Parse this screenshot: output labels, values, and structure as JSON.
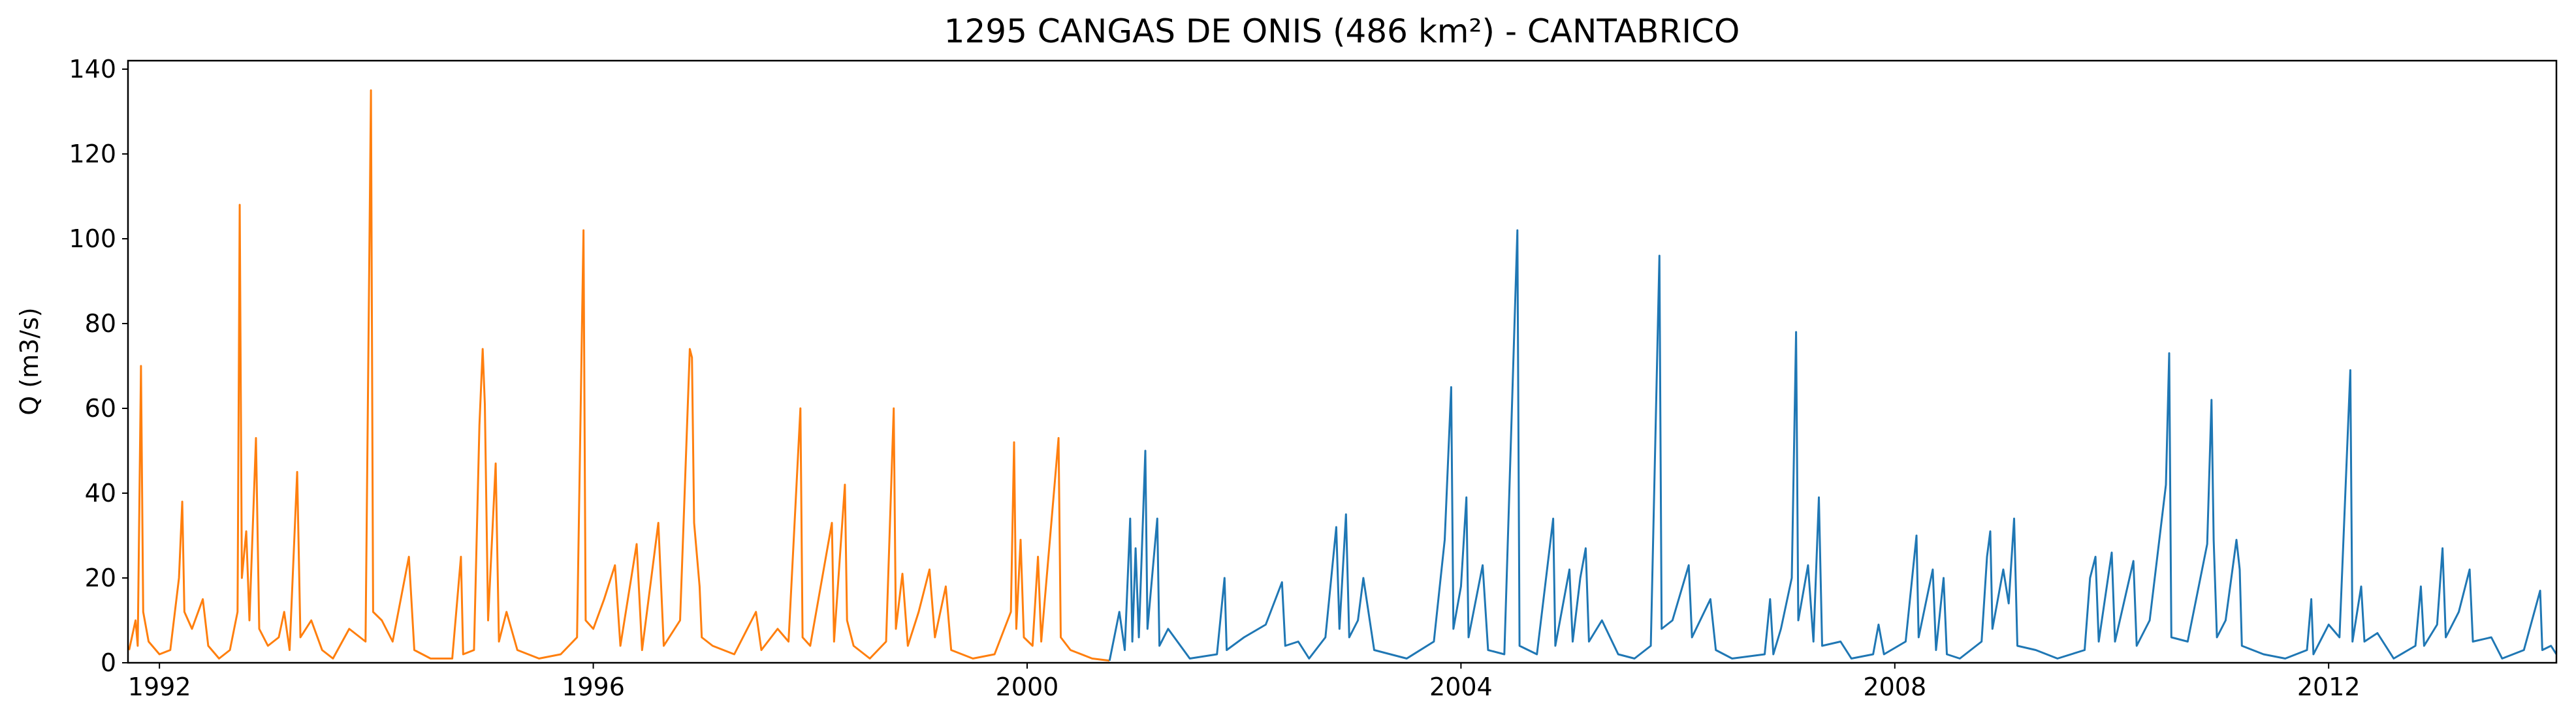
{
  "chart_data": {
    "type": "line",
    "title": "1295 CANGAS DE ONIS (486 km²) - CANTABRICO",
    "ylabel": "Q (m3/s)",
    "xlim": [
      1991.71,
      2014.1
    ],
    "xticks": [
      1992,
      1996,
      2000,
      2004,
      2008,
      2012
    ],
    "ylim": [
      0,
      142
    ],
    "yticks": [
      0,
      20,
      40,
      60,
      80,
      100,
      120,
      140
    ],
    "series": [
      {
        "color": "#ff7f0e",
        "x": [
          1991.72,
          1991.78,
          1991.8,
          1991.83,
          1991.85,
          1991.9,
          1992.0,
          1992.1,
          1992.18,
          1992.21,
          1992.23,
          1992.3,
          1992.4,
          1992.45,
          1992.55,
          1992.65,
          1992.72,
          1992.74,
          1992.76,
          1992.8,
          1992.83,
          1992.89,
          1992.92,
          1993.0,
          1993.1,
          1993.15,
          1993.2,
          1993.27,
          1993.3,
          1993.4,
          1993.5,
          1993.6,
          1993.75,
          1993.9,
          1993.95,
          1993.97,
          1994.05,
          1994.15,
          1994.3,
          1994.35,
          1994.5,
          1994.7,
          1994.78,
          1994.8,
          1994.9,
          1994.95,
          1994.98,
          1995.0,
          1995.03,
          1995.1,
          1995.13,
          1995.2,
          1995.3,
          1995.5,
          1995.7,
          1995.85,
          1995.91,
          1995.93,
          1996.0,
          1996.1,
          1996.2,
          1996.25,
          1996.4,
          1996.45,
          1996.6,
          1996.65,
          1996.8,
          1996.89,
          1996.91,
          1996.93,
          1996.98,
          1997.0,
          1997.1,
          1997.3,
          1997.5,
          1997.55,
          1997.7,
          1997.8,
          1997.91,
          1997.93,
          1998.0,
          1998.2,
          1998.22,
          1998.32,
          1998.34,
          1998.4,
          1998.55,
          1998.7,
          1998.77,
          1998.79,
          1998.85,
          1998.9,
          1999.0,
          1999.1,
          1999.15,
          1999.25,
          1999.3,
          1999.5,
          1999.7,
          1999.85,
          1999.88,
          1999.9,
          1999.94,
          1999.97,
          2000.05,
          2000.1,
          2000.13,
          2000.29,
          2000.31,
          2000.4,
          2000.6,
          2000.76
        ],
        "values": [
          3,
          10,
          4,
          70,
          12,
          5,
          2,
          3,
          20,
          38,
          12,
          8,
          15,
          4,
          1,
          3,
          12,
          108,
          20,
          31,
          10,
          53,
          8,
          4,
          6,
          12,
          3,
          45,
          6,
          10,
          3,
          1,
          8,
          5,
          135,
          12,
          10,
          5,
          25,
          3,
          1,
          1,
          25,
          2,
          3,
          56,
          74,
          61,
          10,
          47,
          5,
          12,
          3,
          1,
          2,
          6,
          102,
          10,
          8,
          15,
          23,
          4,
          28,
          3,
          33,
          4,
          10,
          74,
          72,
          33,
          18,
          6,
          4,
          2,
          12,
          3,
          8,
          5,
          60,
          6,
          4,
          33,
          5,
          42,
          10,
          4,
          1,
          5,
          60,
          8,
          21,
          4,
          12,
          22,
          6,
          18,
          3,
          1,
          2,
          12,
          52,
          8,
          29,
          6,
          4,
          25,
          5,
          53,
          6,
          3,
          1,
          0.5
        ]
      },
      {
        "color": "#1f77b4",
        "x": [
          2000.76,
          2000.85,
          2000.9,
          2000.95,
          2000.97,
          2001.0,
          2001.03,
          2001.09,
          2001.11,
          2001.2,
          2001.22,
          2001.3,
          2001.5,
          2001.75,
          2001.82,
          2001.84,
          2002.0,
          2002.2,
          2002.35,
          2002.38,
          2002.5,
          2002.6,
          2002.75,
          2002.85,
          2002.88,
          2002.94,
          2002.97,
          2003.05,
          2003.1,
          2003.2,
          2003.5,
          2003.75,
          2003.85,
          2003.91,
          2003.93,
          2004.0,
          2004.05,
          2004.07,
          2004.2,
          2004.25,
          2004.4,
          2004.52,
          2004.54,
          2004.7,
          2004.85,
          2004.87,
          2005.0,
          2005.03,
          2005.1,
          2005.15,
          2005.18,
          2005.3,
          2005.45,
          2005.6,
          2005.75,
          2005.83,
          2005.85,
          2005.95,
          2006.1,
          2006.13,
          2006.3,
          2006.35,
          2006.5,
          2006.8,
          2006.85,
          2006.88,
          2006.95,
          2007.05,
          2007.09,
          2007.11,
          2007.2,
          2007.25,
          2007.3,
          2007.33,
          2007.5,
          2007.6,
          2007.8,
          2007.85,
          2007.9,
          2008.1,
          2008.2,
          2008.22,
          2008.35,
          2008.38,
          2008.45,
          2008.48,
          2008.6,
          2008.8,
          2008.85,
          2008.88,
          2008.9,
          2009.0,
          2009.05,
          2009.1,
          2009.13,
          2009.3,
          2009.5,
          2009.75,
          2009.8,
          2009.85,
          2009.88,
          2010.0,
          2010.03,
          2010.2,
          2010.23,
          2010.35,
          2010.5,
          2010.53,
          2010.55,
          2010.7,
          2010.88,
          2010.92,
          2010.94,
          2010.97,
          2011.05,
          2011.15,
          2011.18,
          2011.2,
          2011.4,
          2011.6,
          2011.8,
          2011.84,
          2011.86,
          2012.0,
          2012.1,
          2012.2,
          2012.22,
          2012.3,
          2012.33,
          2012.45,
          2012.6,
          2012.8,
          2012.85,
          2012.88,
          2013.0,
          2013.05,
          2013.08,
          2013.2,
          2013.3,
          2013.33,
          2013.5,
          2013.6,
          2013.8,
          2013.95,
          2013.97,
          2014.05,
          2014.1
        ],
        "values": [
          0.5,
          12,
          3,
          34,
          5,
          27,
          6,
          50,
          8,
          34,
          4,
          8,
          1,
          2,
          20,
          3,
          6,
          9,
          19,
          4,
          5,
          1,
          6,
          32,
          8,
          35,
          6,
          10,
          20,
          3,
          1,
          5,
          29,
          65,
          8,
          18,
          39,
          6,
          23,
          3,
          2,
          102,
          4,
          2,
          34,
          4,
          22,
          5,
          20,
          27,
          5,
          10,
          2,
          1,
          4,
          96,
          8,
          10,
          23,
          6,
          15,
          3,
          1,
          2,
          15,
          2,
          8,
          20,
          78,
          10,
          23,
          5,
          39,
          4,
          5,
          1,
          2,
          9,
          2,
          5,
          30,
          6,
          22,
          3,
          20,
          2,
          1,
          5,
          25,
          31,
          8,
          22,
          14,
          34,
          4,
          3,
          1,
          3,
          20,
          25,
          5,
          26,
          5,
          24,
          4,
          10,
          42,
          73,
          6,
          5,
          28,
          62,
          29,
          6,
          10,
          29,
          22,
          4,
          2,
          1,
          3,
          15,
          2,
          9,
          6,
          69,
          5,
          18,
          5,
          7,
          1,
          4,
          18,
          4,
          9,
          27,
          6,
          12,
          22,
          5,
          6,
          1,
          3,
          17,
          3,
          4,
          2
        ]
      }
    ]
  }
}
